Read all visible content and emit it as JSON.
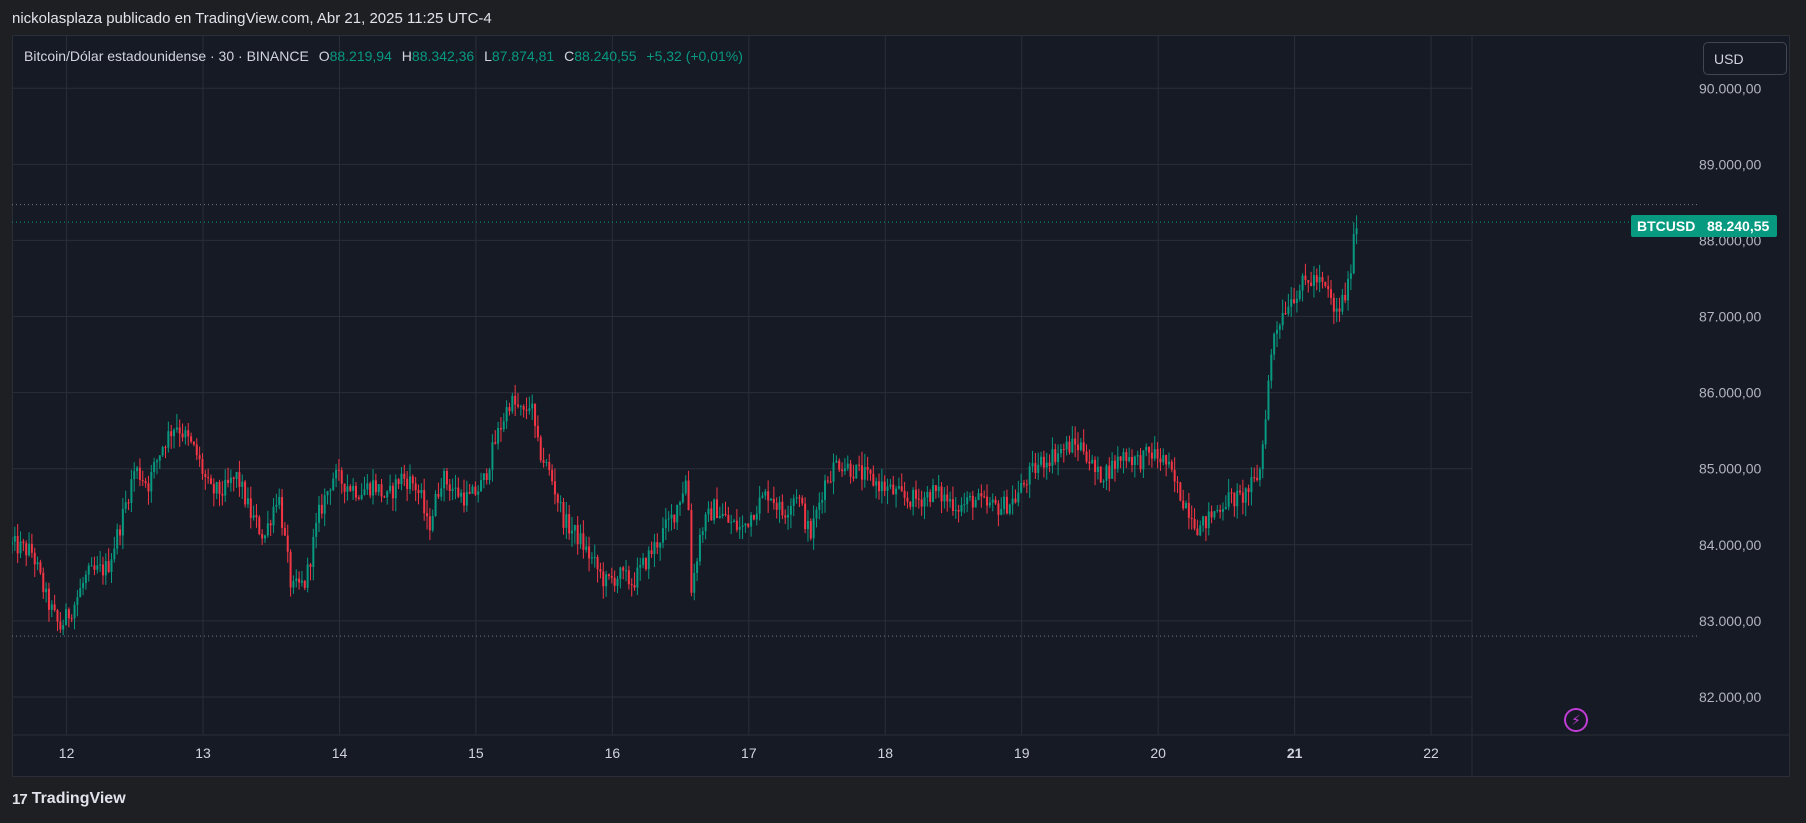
{
  "header": {
    "published_line": "nickolasplaza publicado en TradingView.com, Abr 21, 2025 11:25 UTC-4"
  },
  "legend": {
    "symbol_line": "Bitcoin/Dólar estadounidense · 30 · BINANCE",
    "open_label": "O",
    "open": "88.219,94",
    "high_label": "H",
    "high": "88.342,36",
    "low_label": "L",
    "low": "87.874,81",
    "close_label": "C",
    "close": "88.240,55",
    "change": "+5,32 (+0,01%)"
  },
  "currency_button": {
    "label": "USD"
  },
  "price_label": {
    "symbol": "BTCUSD",
    "value": "88.240,55"
  },
  "alert_icon": "lightning-icon",
  "footer": {
    "brand": "TradingView",
    "logo_glyph": "17"
  },
  "colors": {
    "up": "#089981",
    "down": "#f23645",
    "background": "#161a25",
    "grid": "#2a2e39",
    "alert": "#c03cd4"
  },
  "chart_data": {
    "type": "candlestick",
    "interval_minutes": 30,
    "title": "Bitcoin/Dólar estadounidense · 30 · BINANCE",
    "ylim": [
      81500,
      90700
    ],
    "x_range_days": [
      11.6,
      22.3
    ],
    "y_ticks": [
      {
        "value": 82000,
        "label": "82.000,00"
      },
      {
        "value": 83000,
        "label": "83.000,00"
      },
      {
        "value": 84000,
        "label": "84.000,00"
      },
      {
        "value": 85000,
        "label": "85.000,00"
      },
      {
        "value": 86000,
        "label": "86.000,00"
      },
      {
        "value": 87000,
        "label": "87.000,00"
      },
      {
        "value": 88000,
        "label": "88.000,00"
      },
      {
        "value": 89000,
        "label": "89.000,00"
      },
      {
        "value": 90000,
        "label": "90.000,00"
      }
    ],
    "x_ticks": [
      {
        "day": 12,
        "label": "12"
      },
      {
        "day": 13,
        "label": "13"
      },
      {
        "day": 14,
        "label": "14"
      },
      {
        "day": 15,
        "label": "15"
      },
      {
        "day": 16,
        "label": "16"
      },
      {
        "day": 17,
        "label": "17"
      },
      {
        "day": 18,
        "label": "18"
      },
      {
        "day": 19,
        "label": "19"
      },
      {
        "day": 20,
        "label": "20"
      },
      {
        "day": 21,
        "label": "21"
      },
      {
        "day": 22,
        "label": "22"
      }
    ],
    "reference_lines": [
      {
        "value": 88470,
        "note": "high dotted line"
      },
      {
        "value": 88240.55,
        "note": "current price dotted line"
      },
      {
        "value": 82800,
        "note": "low dotted line"
      }
    ],
    "close_path": [
      [
        11.6,
        84000
      ],
      [
        11.75,
        83900
      ],
      [
        11.85,
        83300
      ],
      [
        11.95,
        82900
      ],
      [
        12.05,
        83200
      ],
      [
        12.15,
        83600
      ],
      [
        12.3,
        83700
      ],
      [
        12.4,
        84300
      ],
      [
        12.5,
        85000
      ],
      [
        12.6,
        84800
      ],
      [
        12.7,
        85300
      ],
      [
        12.8,
        85600
      ],
      [
        12.88,
        85400
      ],
      [
        12.95,
        85200
      ],
      [
        13.05,
        84700
      ],
      [
        13.15,
        84700
      ],
      [
        13.25,
        84900
      ],
      [
        13.35,
        84400
      ],
      [
        13.45,
        84100
      ],
      [
        13.55,
        84700
      ],
      [
        13.65,
        83400
      ],
      [
        13.75,
        83500
      ],
      [
        13.85,
        84400
      ],
      [
        13.95,
        84900
      ],
      [
        14.05,
        84800
      ],
      [
        14.15,
        84700
      ],
      [
        14.25,
        84800
      ],
      [
        14.35,
        84600
      ],
      [
        14.45,
        84900
      ],
      [
        14.55,
        84800
      ],
      [
        14.6,
        84600
      ],
      [
        14.65,
        84200
      ],
      [
        14.75,
        84900
      ],
      [
        14.85,
        84700
      ],
      [
        14.95,
        84600
      ],
      [
        15.05,
        84800
      ],
      [
        15.15,
        85400
      ],
      [
        15.25,
        85900
      ],
      [
        15.35,
        85700
      ],
      [
        15.4,
        85900
      ],
      [
        15.45,
        85300
      ],
      [
        15.55,
        84900
      ],
      [
        15.65,
        84300
      ],
      [
        15.75,
        84100
      ],
      [
        15.85,
        83800
      ],
      [
        15.95,
        83500
      ],
      [
        16.05,
        83600
      ],
      [
        16.15,
        83500
      ],
      [
        16.25,
        83800
      ],
      [
        16.35,
        84100
      ],
      [
        16.45,
        84400
      ],
      [
        16.55,
        84900
      ],
      [
        16.58,
        83400
      ],
      [
        16.65,
        84200
      ],
      [
        16.75,
        84500
      ],
      [
        16.85,
        84300
      ],
      [
        16.95,
        84200
      ],
      [
        17.05,
        84500
      ],
      [
        17.15,
        84700
      ],
      [
        17.25,
        84400
      ],
      [
        17.35,
        84700
      ],
      [
        17.45,
        84100
      ],
      [
        17.55,
        84800
      ],
      [
        17.65,
        85100
      ],
      [
        17.75,
        85000
      ],
      [
        17.85,
        84900
      ],
      [
        17.95,
        84800
      ],
      [
        18.05,
        84700
      ],
      [
        18.15,
        84600
      ],
      [
        18.25,
        84600
      ],
      [
        18.35,
        84700
      ],
      [
        18.45,
        84600
      ],
      [
        18.55,
        84500
      ],
      [
        18.65,
        84600
      ],
      [
        18.75,
        84500
      ],
      [
        18.85,
        84500
      ],
      [
        18.95,
        84600
      ],
      [
        19.05,
        84900
      ],
      [
        19.15,
        85100
      ],
      [
        19.25,
        85200
      ],
      [
        19.35,
        85300
      ],
      [
        19.45,
        85300
      ],
      [
        19.5,
        85100
      ],
      [
        19.55,
        84900
      ],
      [
        19.65,
        85000
      ],
      [
        19.75,
        85200
      ],
      [
        19.85,
        85100
      ],
      [
        19.95,
        85200
      ],
      [
        20.05,
        85100
      ],
      [
        20.15,
        84700
      ],
      [
        20.25,
        84400
      ],
      [
        20.3,
        84200
      ],
      [
        20.4,
        84400
      ],
      [
        20.5,
        84600
      ],
      [
        20.6,
        84600
      ],
      [
        20.7,
        84800
      ],
      [
        20.75,
        85000
      ],
      [
        20.8,
        86000
      ],
      [
        20.85,
        86800
      ],
      [
        20.95,
        87200
      ],
      [
        21.05,
        87400
      ],
      [
        21.15,
        87500
      ],
      [
        21.25,
        87300
      ],
      [
        21.3,
        87000
      ],
      [
        21.35,
        87200
      ],
      [
        21.4,
        87400
      ],
      [
        21.43,
        88100
      ],
      [
        21.46,
        88240
      ]
    ]
  }
}
